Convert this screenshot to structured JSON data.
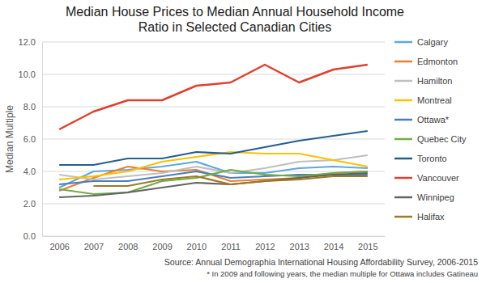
{
  "chart_data": {
    "type": "line",
    "title": "Median House Prices to Median Annual Household Income Ratio in Selected Canadian Cities",
    "y_label": "Median Multiple",
    "annotations": [
      "Source: Annual Demographia International Housing Affordability Survey, 2006-2015",
      "* In 2009 and following years, the median multiple for Ottawa includes Gatineau"
    ],
    "categories": [
      "2006",
      "2007",
      "2008",
      "2009",
      "2010",
      "2011",
      "2012",
      "2013",
      "2014",
      "2015"
    ],
    "ylim": [
      0,
      12
    ],
    "yticks": [
      {
        "value": 0,
        "label": "0.0"
      },
      {
        "value": 2,
        "label": "2.0"
      },
      {
        "value": 4,
        "label": "4.0"
      },
      {
        "value": 6,
        "label": "6.0"
      },
      {
        "value": 8,
        "label": "8.0"
      },
      {
        "value": 10,
        "label": "10.0"
      },
      {
        "value": 12,
        "label": "12.0"
      }
    ],
    "grid": true,
    "legend": "right",
    "series": [
      {
        "name": "Calgary",
        "color": "#5fa8dc",
        "values": [
          3.0,
          4.0,
          4.1,
          4.3,
          4.6,
          3.9,
          3.9,
          4.2,
          4.3,
          4.2
        ]
      },
      {
        "name": "Edmonton",
        "color": "#ed7d31",
        "values": [
          2.8,
          3.6,
          4.3,
          4.0,
          4.1,
          3.4,
          3.5,
          3.6,
          3.9,
          4.0
        ]
      },
      {
        "name": "Hamilton",
        "color": "#bfbfbf",
        "values": [
          3.8,
          3.5,
          3.7,
          3.9,
          4.3,
          3.9,
          4.2,
          4.6,
          4.7,
          5.0
        ]
      },
      {
        "name": "Montreal",
        "color": "#ffc000",
        "values": [
          3.5,
          3.7,
          4.0,
          4.6,
          4.9,
          5.2,
          5.1,
          5.1,
          4.7,
          4.3
        ]
      },
      {
        "name": "Ottawa*",
        "color": "#4a7ebb",
        "values": [
          3.2,
          3.4,
          3.4,
          3.7,
          4.0,
          3.6,
          3.7,
          3.8,
          3.8,
          3.8
        ]
      },
      {
        "name": "Quebec City",
        "color": "#70ad47",
        "values": [
          2.9,
          2.6,
          2.7,
          3.4,
          3.6,
          4.1,
          3.8,
          3.7,
          3.9,
          4.0
        ]
      },
      {
        "name": "Toronto",
        "color": "#255e91",
        "values": [
          4.4,
          4.4,
          4.8,
          4.8,
          5.2,
          5.1,
          5.5,
          5.9,
          6.2,
          6.5
        ]
      },
      {
        "name": "Vancouver",
        "color": "#e0402e",
        "values": [
          6.6,
          7.7,
          8.4,
          8.4,
          9.3,
          9.5,
          10.6,
          9.5,
          10.3,
          10.6
        ]
      },
      {
        "name": "Winnipeg",
        "color": "#636363",
        "values": [
          2.4,
          2.5,
          2.7,
          3.0,
          3.3,
          3.2,
          3.4,
          3.6,
          3.8,
          3.9
        ]
      },
      {
        "name": "Halifax",
        "color": "#9e7a23",
        "values": [
          null,
          3.1,
          3.1,
          3.5,
          3.7,
          3.2,
          3.4,
          3.5,
          3.7,
          3.7
        ]
      }
    ]
  }
}
